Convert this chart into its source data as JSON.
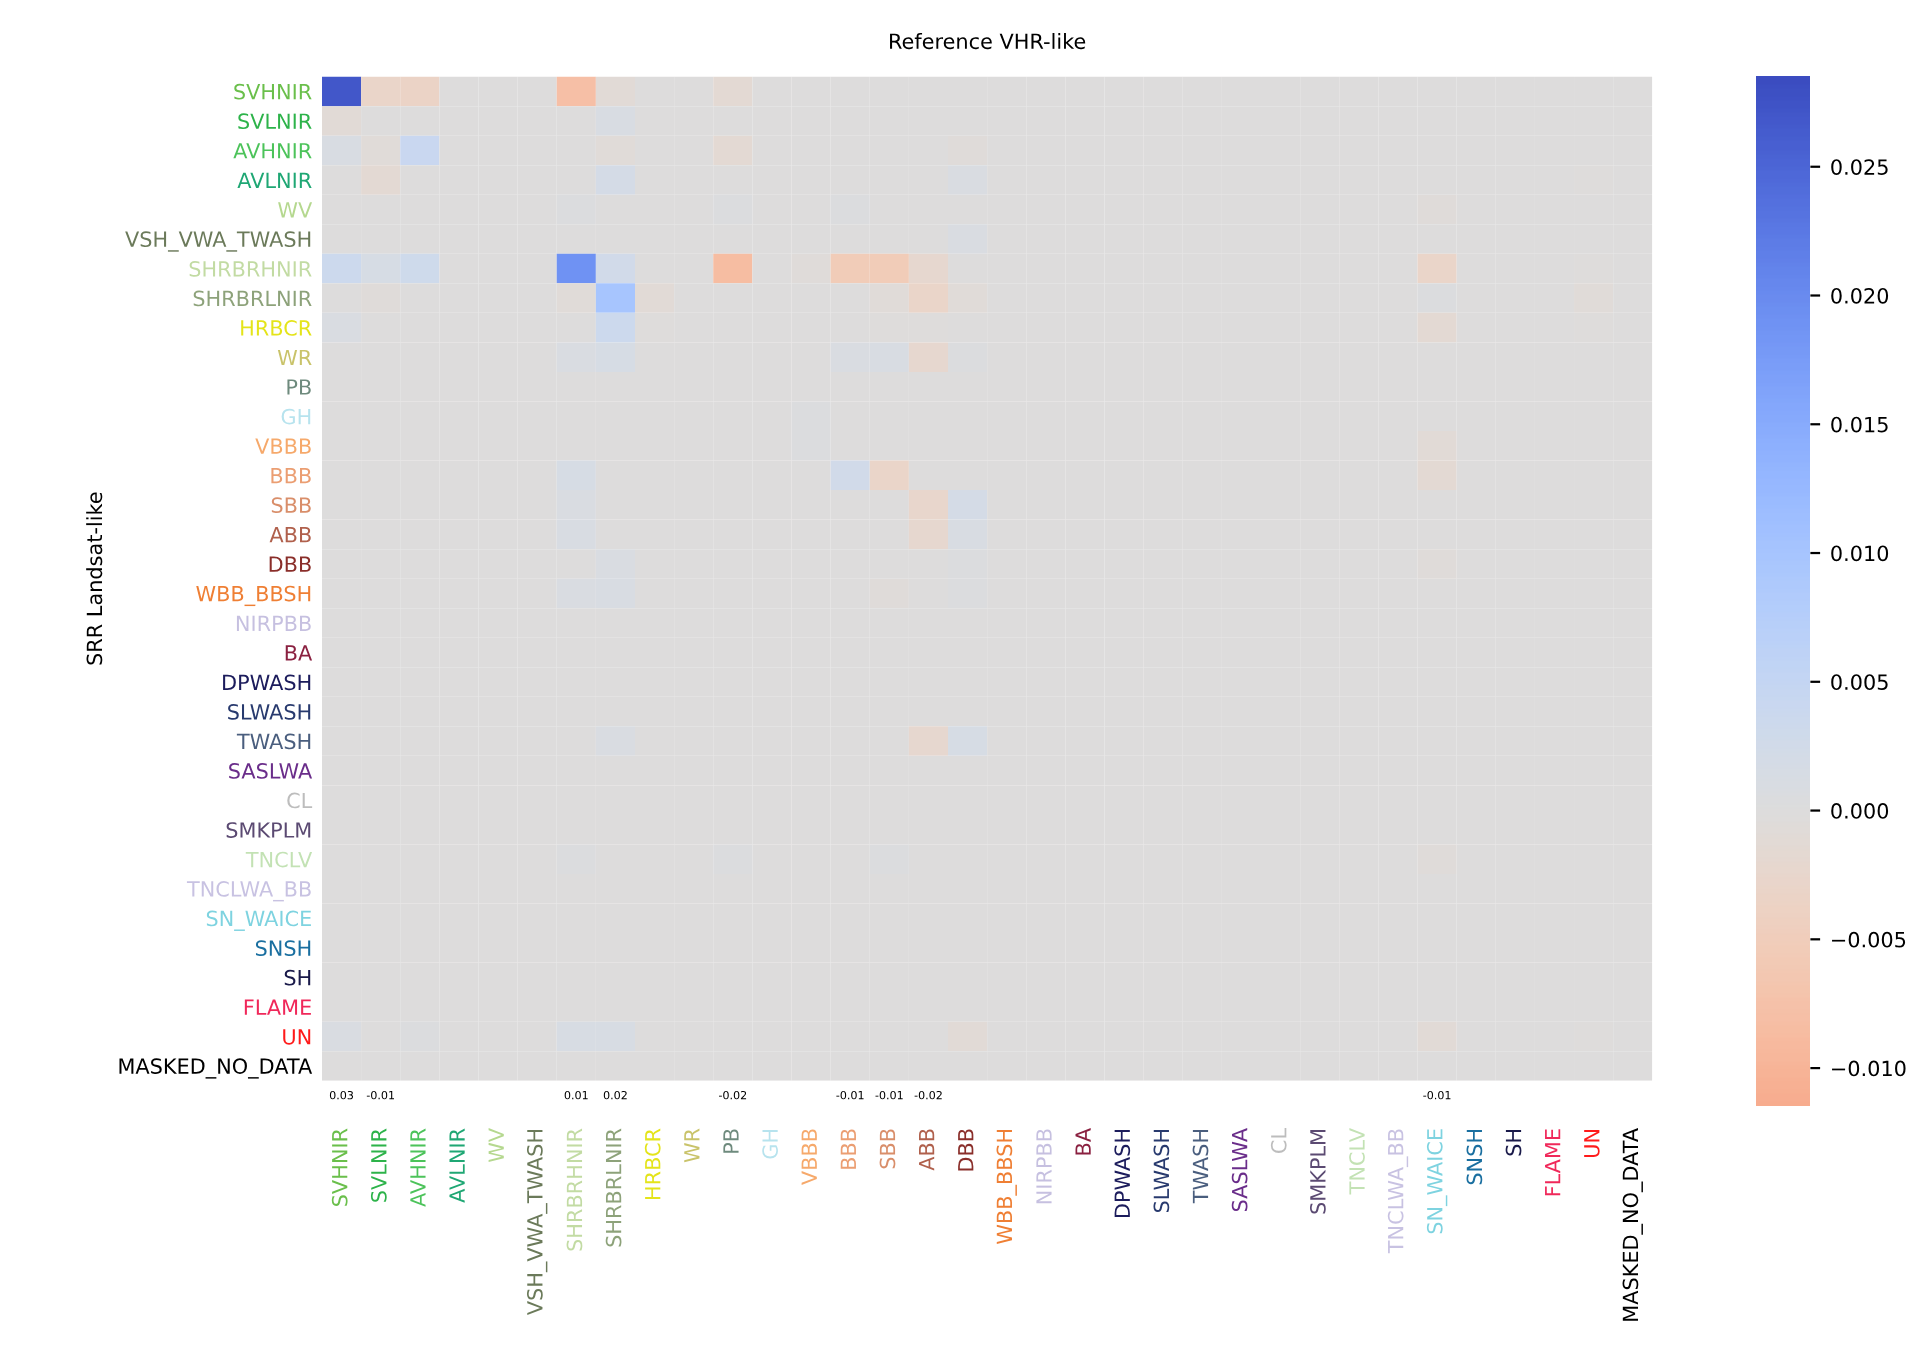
{
  "chart_data": {
    "type": "heatmap",
    "title": "Reference VHR-like",
    "ylabel": "SRR Landsat-like",
    "categories": [
      "SVHNIR",
      "SVLNIR",
      "AVHNIR",
      "AVLNIR",
      "WV",
      "VSH_VWA_TWASH",
      "SHRBRHNIR",
      "SHRBRLNIR",
      "HRBCR",
      "WR",
      "PB",
      "GH",
      "VBBB",
      "BBB",
      "SBB",
      "ABB",
      "DBB",
      "WBB_BBSH",
      "NIRPBB",
      "BA",
      "DPWASH",
      "SLWASH",
      "TWASH",
      "SASLWA",
      "CL",
      "SMKPLM",
      "TNCLV",
      "TNCLWA_BB",
      "SN_WAICE",
      "SNSH",
      "SH",
      "FLAME",
      "UN",
      "MASKED_NO_DATA"
    ],
    "y_categories": [
      "SVHNIR",
      "SVLNIR",
      "AVHNIR",
      "AVLNIR",
      "WV",
      "VSH_VWA_TWASH",
      "SHRBRHNIR",
      "SHRBRLNIR",
      "HRBCR",
      "WR",
      "PB",
      "GH",
      "VBBB",
      "BBB",
      "SBB",
      "ABB",
      "DBB",
      "WBB_BBSH",
      "NIRPBB",
      "BA",
      "DPWASH",
      "SLWASH",
      "TWASH",
      "SASLWA",
      "CL",
      "SMKPLM",
      "TNCLV",
      "TNCLWA_BB",
      "SN_WAICE",
      "SNSH",
      "SH",
      "FLAME",
      "UN",
      "MASKED_NO_DATA"
    ],
    "colors": [
      "#6abf4b",
      "#2db34a",
      "#4cc35a",
      "#1fa774",
      "#b5d88f",
      "#6b7a5a",
      "#c2dba3",
      "#8da27a",
      "#e4e41a",
      "#c9c36a",
      "#6e8a7d",
      "#b7e3ee",
      "#f6a96b",
      "#eb9e72",
      "#d98e6a",
      "#b0604c",
      "#8a2e2a",
      "#ef7f34",
      "#c6c0e0",
      "#8a2040",
      "#1c1c5c",
      "#283a6e",
      "#4a5e7e",
      "#6a2d8a",
      "#bdbdbd",
      "#5b4a72",
      "#c3e2b4",
      "#c8c2e2",
      "#7ed3e0",
      "#1a6fa0",
      "#1a1a4a",
      "#f0285a",
      "#ff1a1a",
      "#000000"
    ],
    "cells": [
      [
        0.027,
        -0.003,
        -0.0035,
        0,
        0,
        0,
        -0.008,
        -0.001,
        0,
        0,
        -0.0015,
        0,
        0,
        0,
        0,
        0,
        0,
        0,
        0,
        0,
        0,
        0,
        0,
        0,
        0,
        0,
        0,
        0,
        0,
        0,
        0,
        0,
        0,
        0
      ],
      [
        -0.001,
        0,
        0,
        0,
        0,
        0,
        0,
        0.001,
        0,
        0,
        0,
        0,
        0,
        0,
        0,
        0,
        0,
        0,
        0,
        0,
        0,
        0,
        0,
        0,
        0,
        0,
        0,
        0,
        0,
        0,
        0,
        0,
        0,
        0
      ],
      [
        0.001,
        -0.0007,
        0.004,
        0,
        0,
        0,
        0,
        -0.0007,
        0,
        0,
        -0.0015,
        0,
        0,
        0,
        0,
        0,
        -0.0005,
        0,
        0,
        0,
        0,
        0,
        0,
        0,
        0,
        0,
        0,
        0,
        0,
        0,
        0,
        0,
        0,
        0
      ],
      [
        0,
        -0.0015,
        0,
        0,
        0,
        0,
        0,
        0.002,
        0,
        0,
        0,
        0,
        0,
        0,
        0,
        0,
        0.0007,
        0,
        0,
        0,
        0,
        0,
        0,
        0,
        0,
        0,
        0,
        0,
        0,
        0,
        0,
        0,
        -0.0003,
        0
      ],
      [
        0,
        0,
        0,
        0,
        0,
        0,
        0.0005,
        0,
        0,
        0,
        0.0005,
        0,
        0,
        0.0005,
        0,
        0,
        0,
        0,
        0,
        0,
        0,
        0,
        0,
        0,
        0,
        0,
        0,
        0,
        -0.0005,
        0,
        0,
        0,
        0,
        0
      ],
      [
        0,
        0,
        0,
        0,
        0,
        0,
        0,
        0,
        0,
        0,
        0,
        0,
        0,
        0,
        0,
        0,
        0.0008,
        0,
        0,
        0,
        0,
        0,
        0,
        0,
        0,
        0,
        0,
        0,
        0,
        0,
        0,
        0,
        0,
        0
      ],
      [
        0.0035,
        0.0015,
        0.003,
        0,
        0,
        0,
        0.019,
        0.0025,
        0,
        0,
        -0.0085,
        0,
        -0.0005,
        -0.0055,
        -0.0055,
        -0.002,
        0,
        0,
        0,
        0,
        0,
        0,
        0,
        0,
        0,
        0,
        0,
        0,
        -0.003,
        0,
        0,
        0,
        -0.0003,
        0
      ],
      [
        0,
        -0.0005,
        0,
        0,
        0,
        0,
        -0.0007,
        0.01,
        -0.001,
        0,
        0,
        0,
        0,
        0,
        -0.0008,
        -0.003,
        -0.0007,
        0,
        0,
        0,
        0,
        0,
        0,
        0,
        0,
        0,
        0,
        0,
        0.0003,
        0,
        0,
        0,
        -0.0007,
        0
      ],
      [
        0.0007,
        0,
        0,
        0,
        0,
        0,
        0,
        0.0035,
        -0.0004,
        0,
        0,
        0,
        0,
        0,
        -0.0004,
        -0.0003,
        0,
        0,
        0,
        0,
        0,
        0,
        0,
        0,
        0,
        0,
        0,
        0,
        -0.0015,
        0,
        0,
        0,
        -0.0003,
        0
      ],
      [
        0,
        0,
        0,
        0,
        0,
        0,
        0.0007,
        0.0015,
        0,
        0,
        0,
        0,
        0,
        0.0007,
        0.001,
        -0.002,
        0.0005,
        0,
        0,
        0,
        0,
        0,
        0,
        0,
        0,
        0,
        0,
        0,
        0,
        0,
        0,
        0,
        0,
        0
      ],
      [
        0,
        0,
        0,
        0,
        0,
        0,
        0,
        0,
        0,
        0,
        0,
        0,
        0,
        0,
        0,
        0,
        0,
        0,
        0,
        0,
        0,
        0,
        0,
        0,
        0,
        0,
        0,
        0,
        0,
        0,
        0,
        0,
        0,
        0
      ],
      [
        0,
        0,
        0,
        0,
        0,
        0,
        0,
        0,
        0,
        0,
        0,
        0,
        0.0005,
        0,
        0,
        0,
        0,
        0,
        0,
        0,
        0,
        0,
        0,
        0,
        0,
        0,
        0,
        0,
        0,
        0,
        0,
        0,
        0,
        0
      ],
      [
        0,
        0,
        0,
        0,
        0,
        0,
        0,
        0,
        0,
        0,
        0,
        0,
        0.0005,
        0,
        0,
        0,
        0,
        0,
        0,
        0,
        0,
        0,
        0,
        0,
        0,
        0,
        0,
        0,
        -0.001,
        0,
        0,
        0,
        0,
        0
      ],
      [
        0,
        0,
        0,
        0,
        0,
        0,
        0.0015,
        0,
        0,
        0,
        0,
        0,
        0,
        0.0025,
        -0.003,
        0,
        0,
        0,
        0,
        0,
        0,
        0,
        0,
        0,
        0,
        0,
        0,
        0,
        -0.0015,
        0,
        0,
        0,
        0,
        0
      ],
      [
        0,
        0,
        0,
        0,
        0,
        0,
        0.0007,
        0,
        0,
        0,
        0,
        0,
        0,
        0,
        0,
        -0.0025,
        0.002,
        0,
        0,
        0,
        0,
        0,
        0,
        0,
        0,
        0,
        0,
        0,
        0,
        0,
        0,
        0,
        0,
        0
      ],
      [
        0,
        0,
        0,
        0,
        0,
        0,
        0.001,
        0,
        0,
        0,
        0,
        0,
        0,
        0,
        0,
        -0.002,
        0.001,
        0,
        0,
        0,
        0,
        0,
        0,
        0,
        0,
        0,
        0,
        0,
        0,
        0,
        0,
        0,
        0,
        0
      ],
      [
        0,
        0,
        0,
        0,
        0,
        0,
        0,
        0.0007,
        0,
        0,
        0,
        0,
        0,
        0,
        0,
        0,
        0.0005,
        0,
        0,
        0,
        0,
        0,
        0,
        0,
        0,
        0,
        0,
        0,
        -0.0005,
        0,
        0,
        0,
        0,
        0
      ],
      [
        0,
        0,
        0,
        0,
        0,
        0,
        0.0007,
        0.001,
        0,
        0,
        0,
        0,
        0,
        0,
        -0.0005,
        0,
        0.0005,
        0,
        0,
        0,
        0,
        0,
        0,
        0,
        0,
        0,
        0,
        0,
        0,
        0,
        0,
        0,
        0,
        0
      ],
      [
        0,
        0,
        0,
        0,
        0,
        0,
        0,
        0,
        0,
        0,
        0,
        0,
        0,
        0,
        0,
        0,
        0,
        0,
        0,
        0,
        0,
        0,
        0,
        0,
        0,
        0,
        0,
        0,
        0,
        0,
        0,
        0,
        0,
        0
      ],
      [
        0,
        0,
        0,
        0,
        0,
        0,
        0,
        0,
        0,
        0,
        0,
        0,
        0,
        0,
        0,
        0,
        0,
        0,
        0,
        0,
        0,
        0,
        0,
        0,
        0,
        0,
        0,
        0,
        0,
        0,
        0,
        0,
        0,
        0
      ],
      [
        0,
        0,
        0,
        0,
        0,
        0,
        0,
        0,
        0,
        0,
        0,
        0,
        0,
        0,
        0,
        0,
        0,
        0,
        0,
        0,
        0,
        0,
        0,
        0,
        0,
        0,
        0,
        0,
        0,
        0,
        0,
        0,
        0,
        0
      ],
      [
        0,
        0,
        0,
        0,
        0,
        0,
        0,
        0,
        0,
        0,
        0,
        0,
        0,
        0,
        0,
        0,
        0,
        0,
        0,
        0,
        0,
        0,
        0,
        0,
        0,
        0,
        0,
        0,
        0,
        0,
        0,
        0,
        0,
        0
      ],
      [
        0,
        0,
        0,
        0,
        0,
        0,
        0,
        0.0008,
        0,
        0,
        0,
        0,
        0,
        0,
        0,
        -0.002,
        0.0015,
        0,
        0,
        0,
        0,
        0,
        0,
        0,
        0,
        0,
        0,
        0,
        0,
        0,
        0,
        0,
        0,
        0
      ],
      [
        0,
        0,
        0,
        0,
        0,
        0,
        0,
        0,
        0,
        0,
        0,
        0,
        0,
        0,
        0,
        0,
        0,
        0,
        0,
        0,
        0,
        0,
        0,
        0,
        0,
        0,
        0,
        0,
        0,
        0,
        0,
        0,
        0,
        0
      ],
      [
        0,
        0,
        0,
        0,
        0,
        0,
        0,
        0,
        0,
        0,
        0,
        0,
        0,
        0,
        0,
        0,
        0,
        0,
        0,
        0,
        0,
        0,
        0,
        0,
        0,
        0,
        0,
        0,
        0,
        0,
        0,
        0,
        0,
        0
      ],
      [
        0,
        0,
        0,
        0,
        0,
        0,
        0,
        0,
        0,
        0,
        0,
        0,
        0,
        0,
        0,
        0,
        0,
        0,
        0,
        0,
        0,
        0,
        0,
        0,
        0,
        0,
        0,
        0,
        0,
        0,
        0,
        0,
        0,
        0
      ],
      [
        0,
        0,
        0,
        0,
        0,
        0,
        0.0005,
        0,
        0,
        0,
        0.0005,
        0,
        0,
        0,
        0.0005,
        0,
        0,
        0,
        0,
        0,
        0,
        0,
        0,
        0,
        0,
        0,
        0,
        0,
        -0.0005,
        0,
        0,
        0,
        0,
        0
      ],
      [
        0,
        0,
        0,
        0,
        0,
        0,
        0,
        0,
        0,
        0,
        0,
        0,
        0,
        0,
        0,
        0,
        0,
        0,
        0,
        0,
        0,
        0,
        0,
        0,
        0,
        0,
        0,
        0,
        0,
        0,
        0,
        0,
        0,
        0
      ],
      [
        0,
        0,
        0,
        0,
        0,
        0,
        0,
        0,
        0,
        0,
        0,
        0,
        0,
        0,
        0,
        0,
        0,
        0,
        0,
        0,
        0,
        0,
        0,
        0,
        0,
        0,
        0,
        0,
        0,
        0,
        0,
        0,
        0,
        0
      ],
      [
        0,
        0,
        0,
        0,
        0,
        0,
        0,
        0,
        0,
        0,
        0,
        0,
        0,
        0,
        0,
        0,
        0,
        0,
        0,
        0,
        0,
        0,
        0,
        0,
        0,
        0,
        0,
        0,
        0,
        0,
        0,
        0,
        0,
        0
      ],
      [
        0,
        0,
        0,
        0,
        0,
        0,
        0,
        0,
        0,
        0,
        0,
        0,
        0,
        0,
        0,
        0,
        0,
        0,
        0,
        0,
        0,
        0,
        0,
        0,
        0,
        0,
        0,
        0,
        0,
        0,
        0,
        0,
        0,
        0
      ],
      [
        0,
        0,
        0,
        0,
        0,
        0,
        0,
        0,
        0,
        0,
        0,
        0,
        0,
        0,
        0,
        0,
        0,
        0,
        0,
        0,
        0,
        0,
        0,
        0,
        0,
        0,
        0,
        0,
        0,
        0,
        0,
        0,
        0,
        0
      ],
      [
        0.0008,
        0,
        0.0005,
        0,
        0,
        0,
        0.0012,
        0.0012,
        0,
        0,
        0,
        0,
        0,
        0,
        0,
        0,
        -0.001,
        0,
        0,
        0,
        0,
        0,
        0,
        0,
        0,
        0,
        0,
        0,
        -0.001,
        0,
        0,
        0,
        -0.0003,
        0
      ],
      [
        0,
        0,
        0,
        0,
        0,
        0,
        0,
        0,
        0,
        0,
        0,
        0,
        0,
        0,
        0,
        0,
        0,
        0,
        0,
        0,
        0,
        0,
        0,
        0,
        0,
        0,
        0,
        0,
        0,
        0,
        0,
        0,
        0,
        0
      ]
    ],
    "clim": [
      -0.0115,
      0.0285
    ],
    "cticks": [
      {
        "value": -0.01,
        "label": "−0.010"
      },
      {
        "value": -0.005,
        "label": "−0.005"
      },
      {
        "value": 0,
        "label": "0.000"
      },
      {
        "value": 0.005,
        "label": "0.005"
      },
      {
        "value": 0.01,
        "label": "0.010"
      },
      {
        "value": 0.015,
        "label": "0.015"
      },
      {
        "value": 0.02,
        "label": "0.020"
      },
      {
        "value": 0.025,
        "label": "0.025"
      }
    ],
    "totals": [
      "0.03",
      "-0.01",
      null,
      null,
      null,
      null,
      "0.01",
      "0.02",
      null,
      null,
      "-0.02",
      null,
      null,
      "-0.01",
      "-0.01",
      "-0.02",
      null,
      null,
      null,
      null,
      null,
      null,
      null,
      null,
      null,
      null,
      null,
      null,
      "-0.01",
      null,
      null,
      null,
      null,
      null
    ]
  }
}
